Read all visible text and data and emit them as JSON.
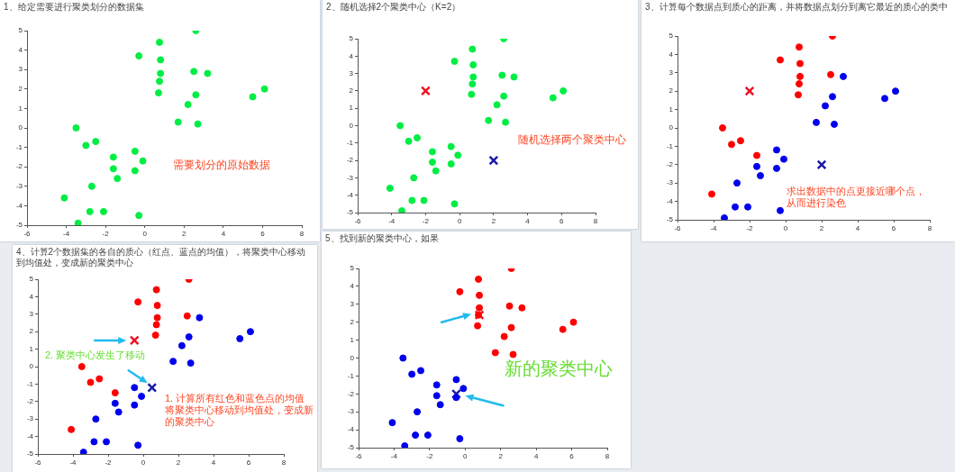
{
  "chart_data": [
    {
      "type": "scatter",
      "title": "1、给定需要进行聚类划分的数据集",
      "xlim": [
        -6,
        8
      ],
      "ylim": [
        -5,
        5
      ],
      "xticks": [
        -6,
        -4,
        -2,
        0,
        2,
        4,
        6,
        8
      ],
      "yticks": [
        -5,
        -4,
        -3,
        -2,
        -1,
        0,
        1,
        2,
        3,
        4,
        5
      ],
      "grid": false,
      "legend": false,
      "annotations": [
        "需要划分的原始数据"
      ],
      "series": [
        {
          "color": "#00ee44",
          "marker": "circle",
          "x": [
            2.6,
            0.75,
            -0.3,
            0.8,
            0.8,
            2.5,
            3.2,
            0.75,
            0.7,
            2.6,
            2.2,
            5.5,
            6.1,
            1.7,
            2.7,
            -3.5,
            -2.5,
            -3.0,
            -0.5,
            -1.6,
            -0.1,
            -1.6,
            -0.5,
            -1.4,
            -2.7,
            -4.1,
            -2.8,
            -2.1,
            -0.3,
            -3.4
          ],
          "values": [
            5.0,
            4.4,
            3.7,
            3.5,
            2.8,
            2.9,
            2.8,
            2.4,
            1.8,
            1.7,
            1.2,
            1.6,
            2.0,
            0.3,
            0.2,
            0,
            -0.7,
            -0.9,
            -1.2,
            -1.5,
            -1.7,
            -2.1,
            -2.2,
            -2.6,
            -3.0,
            -3.6,
            -4.3,
            -4.3,
            -4.5,
            -4.9
          ]
        }
      ]
    },
    {
      "type": "scatter",
      "title": "2、随机选择2个聚类中心（K=2）",
      "xlim": [
        -6,
        8
      ],
      "ylim": [
        -5,
        5
      ],
      "xticks": [
        -6,
        -4,
        -2,
        0,
        2,
        4,
        6,
        8
      ],
      "yticks": [
        -5,
        -4,
        -3,
        -2,
        -1,
        0,
        1,
        2,
        3,
        4,
        5
      ],
      "grid": false,
      "legend": false,
      "annotations": [
        "随机选择两个聚类中心"
      ],
      "series": [
        {
          "color": "#00ee44",
          "marker": "circle",
          "x": [
            2.6,
            0.75,
            -0.3,
            0.8,
            0.8,
            2.5,
            3.2,
            0.75,
            0.7,
            2.6,
            2.2,
            5.5,
            6.1,
            1.7,
            2.7,
            -3.5,
            -2.5,
            -3.0,
            -0.5,
            -1.6,
            -0.1,
            -1.6,
            -0.5,
            -1.4,
            -2.7,
            -4.1,
            -2.8,
            -2.1,
            -0.3,
            -3.4
          ],
          "values": [
            5.0,
            4.4,
            3.7,
            3.5,
            2.8,
            2.9,
            2.8,
            2.4,
            1.8,
            1.7,
            1.2,
            1.6,
            2.0,
            0.3,
            0.2,
            0,
            -0.7,
            -0.9,
            -1.2,
            -1.5,
            -1.7,
            -2.1,
            -2.2,
            -2.6,
            -3.0,
            -3.6,
            -4.3,
            -4.3,
            -4.5,
            -4.9
          ]
        },
        {
          "color": "#ee1122",
          "marker": "cross",
          "x": [
            -2
          ],
          "values": [
            2
          ]
        },
        {
          "color": "#1a1aa8",
          "marker": "cross",
          "x": [
            2
          ],
          "values": [
            -2
          ]
        }
      ]
    },
    {
      "type": "scatter",
      "title": "3、计算每个数据点到质心的距离，并将数据点划分到离它最近的质心的类中",
      "xlim": [
        -6,
        8
      ],
      "ylim": [
        -5,
        5
      ],
      "xticks": [
        -6,
        -4,
        -2,
        0,
        2,
        4,
        6,
        8
      ],
      "yticks": [
        -5,
        -4,
        -3,
        -2,
        -1,
        0,
        1,
        2,
        3,
        4,
        5
      ],
      "grid": false,
      "legend": false,
      "annotations": [
        "求出数据中的点更接近哪个点，从而进行染色"
      ],
      "series": [
        {
          "color": "#ff0000",
          "marker": "circle",
          "x": [
            2.6,
            0.75,
            -0.3,
            0.8,
            0.8,
            2.5,
            0.75,
            0.7,
            -3.5,
            -2.5,
            -3.0,
            -1.6,
            -4.1
          ],
          "values": [
            5.0,
            4.4,
            3.7,
            3.5,
            2.8,
            2.9,
            2.4,
            1.8,
            0,
            -0.7,
            -0.9,
            -1.5,
            -3.6
          ]
        },
        {
          "color": "#0000ee",
          "marker": "circle",
          "x": [
            3.2,
            2.6,
            2.2,
            5.5,
            6.1,
            1.7,
            2.7,
            -0.5,
            -0.1,
            -1.6,
            -0.5,
            -1.4,
            -2.7,
            -2.8,
            -2.1,
            -0.3,
            -3.4
          ],
          "values": [
            2.8,
            1.7,
            1.2,
            1.6,
            2.0,
            0.3,
            0.2,
            -1.2,
            -1.7,
            -2.1,
            -2.2,
            -2.6,
            -3.0,
            -4.3,
            -4.3,
            -4.5,
            -4.9
          ]
        },
        {
          "color": "#ee1122",
          "marker": "cross",
          "x": [
            -2
          ],
          "values": [
            2
          ]
        },
        {
          "color": "#1a1aa8",
          "marker": "cross",
          "x": [
            2
          ],
          "values": [
            -2
          ]
        }
      ]
    },
    {
      "type": "scatter",
      "title": "4、计算2个数据集的各自的质心（红点、蓝点的均值），将聚类中心移动到均值处，变成新的聚类中心",
      "xlim": [
        -6,
        8
      ],
      "ylim": [
        -5,
        5
      ],
      "xticks": [
        -6,
        -4,
        -2,
        0,
        2,
        4,
        6,
        8
      ],
      "yticks": [
        -5,
        -4,
        -3,
        -2,
        -1,
        0,
        1,
        2,
        3,
        4,
        5
      ],
      "grid": false,
      "legend": false,
      "annotations": [
        {
          "text": "2. 聚类中心发生了移动",
          "x": -0.5,
          "y": 1.5
        },
        {
          "text": "1. 计算所有红色和蓝色点的均值将聚类中心移动到均值处，变成新的聚类中心",
          "x": 0.5,
          "y": -1.2
        }
      ],
      "series": [
        {
          "color": "#ff0000",
          "marker": "circle",
          "x": [
            2.6,
            0.75,
            -0.3,
            0.8,
            0.8,
            2.5,
            0.75,
            0.7,
            -3.5,
            -2.5,
            -3.0,
            -1.6,
            -4.1
          ],
          "values": [
            5.0,
            4.4,
            3.7,
            3.5,
            2.8,
            2.9,
            2.4,
            1.8,
            0,
            -0.7,
            -0.9,
            -1.5,
            -3.6
          ]
        },
        {
          "color": "#0000ee",
          "marker": "circle",
          "x": [
            3.2,
            2.6,
            2.2,
            5.5,
            6.1,
            1.7,
            2.7,
            -0.5,
            -0.1,
            -1.6,
            -0.5,
            -1.4,
            -2.7,
            -2.8,
            -2.1,
            -0.3,
            -3.4
          ],
          "values": [
            2.8,
            1.7,
            1.2,
            1.6,
            2.0,
            0.3,
            0.2,
            -1.2,
            -1.7,
            -2.1,
            -2.2,
            -2.6,
            -3.0,
            -4.3,
            -4.3,
            -4.5,
            -4.9
          ]
        },
        {
          "color": "#ee1122",
          "marker": "cross",
          "x": [
            -0.5
          ],
          "values": [
            1.5
          ]
        },
        {
          "color": "#1a1aa8",
          "marker": "cross",
          "x": [
            0.5
          ],
          "values": [
            -1.2
          ]
        }
      ]
    },
    {
      "type": "scatter",
      "title": "5、找到新的聚类中心，如果",
      "xlim": [
        -6,
        8
      ],
      "ylim": [
        -5,
        5
      ],
      "xticks": [
        -6,
        -4,
        -2,
        0,
        2,
        4,
        6,
        8
      ],
      "yticks": [
        -5,
        -4,
        -3,
        -2,
        -1,
        0,
        1,
        2,
        3,
        4,
        5
      ],
      "grid": false,
      "legend": false,
      "annotations": [
        "新的聚类中心"
      ],
      "series": [
        {
          "color": "#ff0000",
          "marker": "circle",
          "x": [
            2.6,
            0.75,
            -0.3,
            0.8,
            0.8,
            2.5,
            3.2,
            0.75,
            0.7,
            2.6,
            2.2,
            5.5,
            6.1,
            1.7,
            2.7
          ],
          "values": [
            5.0,
            4.4,
            3.7,
            3.5,
            2.8,
            2.9,
            2.8,
            2.4,
            1.8,
            1.7,
            1.2,
            1.6,
            2.0,
            0.3,
            0.2
          ]
        },
        {
          "color": "#0000ee",
          "marker": "circle",
          "x": [
            -3.5,
            -2.5,
            -3.0,
            -0.5,
            -1.6,
            -0.1,
            -1.6,
            -0.5,
            -1.4,
            -2.7,
            -4.1,
            -2.8,
            -2.1,
            -0.3,
            -3.4
          ],
          "values": [
            0,
            -0.7,
            -0.9,
            -1.2,
            -1.5,
            -1.7,
            -2.1,
            -2.2,
            -2.6,
            -3.0,
            -3.6,
            -4.3,
            -4.3,
            -4.5,
            -4.9
          ]
        },
        {
          "color": "#ee1122",
          "marker": "cross",
          "x": [
            0.8
          ],
          "values": [
            2.4
          ]
        },
        {
          "color": "#1a1aa8",
          "marker": "cross",
          "x": [
            -0.5
          ],
          "values": [
            -2.0
          ]
        }
      ]
    }
  ]
}
